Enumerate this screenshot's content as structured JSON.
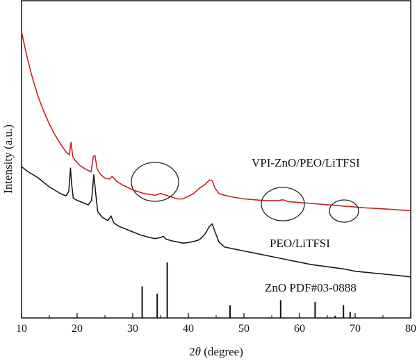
{
  "chart_data": {
    "type": "line",
    "title": "",
    "xlabel": "2θ (degree)",
    "xlabel_prefix": "2",
    "xlabel_theta": "θ",
    "xlabel_suffix": " (degree)",
    "ylabel": "Intensity (a.u.)",
    "xlim": [
      10,
      80
    ],
    "x_ticks": [
      10,
      20,
      30,
      40,
      50,
      60,
      70,
      80
    ],
    "grid": false,
    "y_tick_labels": false,
    "colors": {
      "VPI-ZnO/PEO/LiTFSI": "#cc1f1f",
      "PEO/LiTFSI": "#1a1a1a",
      "ZnO PDF#03-0888": "#1a1a1a"
    },
    "series": [
      {
        "name": "VPI-ZnO/PEO/LiTFSI",
        "x": [
          10,
          11,
          12,
          13,
          14,
          15,
          16,
          17,
          18,
          18.6,
          18.9,
          19.2,
          19.6,
          20.5,
          21.5,
          22.5,
          22.9,
          23.2,
          23.6,
          24.2,
          25,
          25.8,
          26.3,
          27,
          28,
          29,
          30,
          31,
          32,
          33,
          34,
          35,
          36,
          37,
          38,
          39,
          40,
          41,
          42,
          43,
          43.8,
          44.3,
          44.8,
          45.5,
          46.5,
          48,
          50,
          52,
          54,
          56,
          57,
          58,
          60,
          62,
          64,
          66,
          68,
          70,
          72,
          74,
          76,
          78,
          80
        ],
        "y": [
          0.0,
          -0.14,
          -0.26,
          -0.36,
          -0.44,
          -0.51,
          -0.57,
          -0.62,
          -0.665,
          -0.68,
          -0.61,
          -0.69,
          -0.71,
          -0.74,
          -0.76,
          -0.775,
          -0.69,
          -0.685,
          -0.76,
          -0.79,
          -0.81,
          -0.815,
          -0.8,
          -0.825,
          -0.845,
          -0.86,
          -0.875,
          -0.885,
          -0.895,
          -0.9,
          -0.905,
          -0.895,
          -0.905,
          -0.915,
          -0.925,
          -0.925,
          -0.91,
          -0.895,
          -0.865,
          -0.845,
          -0.82,
          -0.825,
          -0.865,
          -0.895,
          -0.905,
          -0.915,
          -0.925,
          -0.93,
          -0.935,
          -0.935,
          -0.93,
          -0.94,
          -0.945,
          -0.95,
          -0.955,
          -0.96,
          -0.965,
          -0.97,
          -0.975,
          -0.978,
          -0.982,
          -0.986,
          -0.99
        ]
      },
      {
        "name": "PEO/LiTFSI",
        "x": [
          10,
          11,
          12,
          13,
          14,
          15,
          16,
          17,
          18,
          18.5,
          18.8,
          19.0,
          19.3,
          20,
          21,
          22,
          22.6,
          23.0,
          23.3,
          23.7,
          24.5,
          25.5,
          26.1,
          26.6,
          27.5,
          28.5,
          30,
          31.5,
          33,
          34,
          35,
          35.5,
          36,
          37,
          38,
          39,
          40,
          41,
          42,
          43,
          43.8,
          44.3,
          44.8,
          45.5,
          46.5,
          48,
          50,
          52,
          55,
          58,
          60,
          62,
          65,
          68,
          70,
          72,
          74,
          76,
          78,
          80
        ],
        "y": [
          1.0,
          0.96,
          0.93,
          0.9,
          0.86,
          0.82,
          0.79,
          0.76,
          0.74,
          0.78,
          0.99,
          0.85,
          0.72,
          0.7,
          0.68,
          0.66,
          0.7,
          0.93,
          0.78,
          0.6,
          0.55,
          0.52,
          0.56,
          0.5,
          0.47,
          0.45,
          0.42,
          0.39,
          0.37,
          0.36,
          0.37,
          0.38,
          0.355,
          0.34,
          0.33,
          0.32,
          0.325,
          0.335,
          0.35,
          0.4,
          0.47,
          0.49,
          0.42,
          0.33,
          0.285,
          0.27,
          0.25,
          0.23,
          0.2,
          0.17,
          0.15,
          0.13,
          0.11,
          0.09,
          0.07,
          0.06,
          0.05,
          0.04,
          0.03,
          0.02
        ]
      }
    ],
    "reference": {
      "name": "ZnO PDF#03-0888",
      "peaks": [
        {
          "x": 31.7,
          "intensity": 57
        },
        {
          "x": 34.4,
          "intensity": 44
        },
        {
          "x": 36.2,
          "intensity": 100
        },
        {
          "x": 47.5,
          "intensity": 23
        },
        {
          "x": 56.6,
          "intensity": 32
        },
        {
          "x": 62.8,
          "intensity": 29
        },
        {
          "x": 66.4,
          "intensity": 4
        },
        {
          "x": 67.9,
          "intensity": 23
        },
        {
          "x": 69.1,
          "intensity": 11
        }
      ]
    },
    "annotations": [
      {
        "type": "ellipse",
        "x": 34,
        "label": ""
      },
      {
        "type": "ellipse",
        "x": 57,
        "label": ""
      },
      {
        "type": "ellipse",
        "x": 68,
        "label": ""
      }
    ]
  },
  "labels": {
    "series1": "VPI-ZnO/PEO/LiTFSI",
    "series2": "PEO/LiTFSI",
    "reference": "ZnO PDF#03-0888"
  }
}
